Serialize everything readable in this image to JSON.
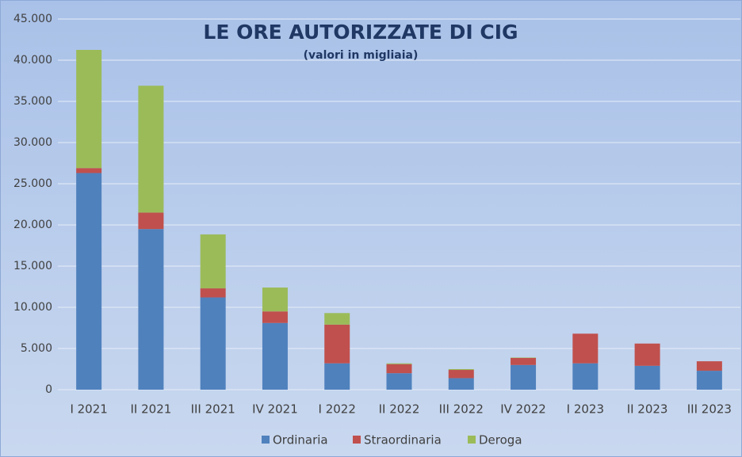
{
  "chart_data": {
    "type": "stacked_bar",
    "title": "LE ORE AUTORIZZATE DI CIG",
    "subtitle": "(valori in migliaia)",
    "categories": [
      "I 2021",
      "II 2021",
      "III 2021",
      "IV 2021",
      "I 2022",
      "II 2022",
      "III 2022",
      "IV 2022",
      "I 2023",
      "II 2023",
      "III 2023"
    ],
    "series": [
      {
        "name": "Ordinaria",
        "color": "#4f81bd",
        "values": [
          26300,
          19500,
          11200,
          8100,
          3200,
          2000,
          1400,
          3000,
          3200,
          2900,
          2300
        ]
      },
      {
        "name": "Straordinaria",
        "color": "#c0504d",
        "values": [
          600,
          2000,
          1100,
          1400,
          4700,
          1100,
          1000,
          850,
          3600,
          2700,
          1150
        ]
      },
      {
        "name": "Deroga",
        "color": "#9bbb59",
        "values": [
          14350,
          15400,
          6550,
          2900,
          1400,
          100,
          100,
          50,
          0,
          0,
          0
        ]
      }
    ],
    "ylim": [
      0,
      45000
    ],
    "yticks": [
      0,
      {
        "value": 5000,
        "label": "5.000"
      },
      {
        "value": 10000,
        "label": "10.000"
      },
      {
        "value": 15000,
        "label": "15.000"
      },
      {
        "value": 20000,
        "label": "20.000"
      },
      {
        "value": 25000,
        "label": "25.000"
      },
      {
        "value": 30000,
        "label": "30.000"
      },
      {
        "value": 35000,
        "label": "35.000"
      },
      {
        "value": 40000,
        "label": "40.000"
      },
      {
        "value": 45000,
        "label": "45.000"
      }
    ],
    "grid": true,
    "legend": "bottom"
  }
}
